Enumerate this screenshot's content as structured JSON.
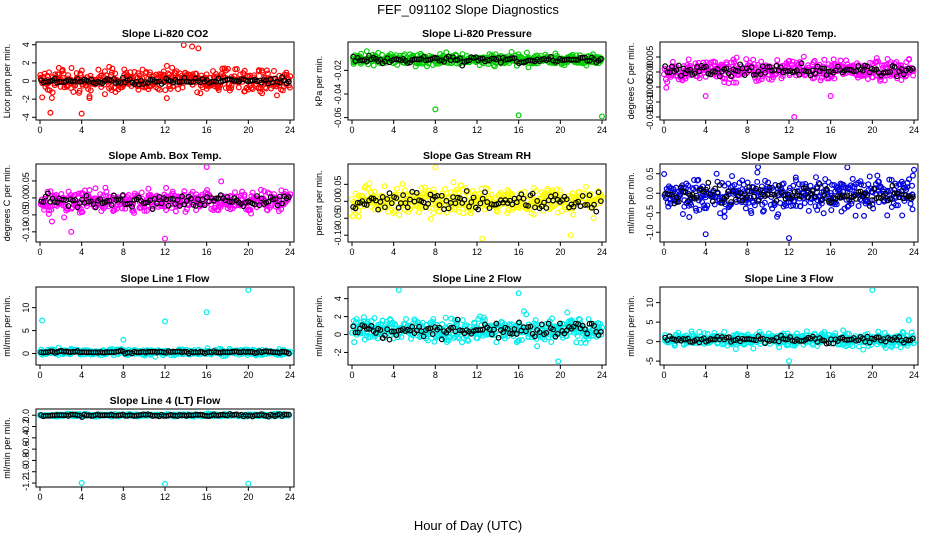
{
  "figure": {
    "title": "FEF_091102  Slope Diagnostics",
    "xlabel": "Hour of Day (UTC)"
  },
  "chart_data": [
    {
      "type": "scatter",
      "title": "Slope Li-820 CO2",
      "ylabel": "Licor ppm per min.",
      "color": "#ff0000",
      "xlim": [
        0,
        24
      ],
      "xticks": [
        0,
        4,
        8,
        12,
        16,
        20,
        24
      ],
      "ylim": [
        -4.3,
        4.3
      ],
      "yticks": [
        -4,
        -2,
        0,
        2,
        4
      ],
      "ytick_labels": [
        "-4",
        "-2",
        "0",
        "2",
        "4"
      ],
      "center": 0,
      "spread": 1.25,
      "black_spread": 0.35,
      "outliers": [
        [
          13.8,
          4.1
        ],
        [
          14.6,
          3.8
        ],
        [
          15.2,
          3.6
        ],
        [
          4.0,
          -3.6
        ],
        [
          1.0,
          -3.5
        ]
      ]
    },
    {
      "type": "scatter",
      "title": "Slope Li-820 Pressure",
      "ylabel": "kPa per min.",
      "color": "#00cc00",
      "xlim": [
        0,
        24
      ],
      "xticks": [
        0,
        4,
        8,
        12,
        16,
        20,
        24
      ],
      "ylim": [
        -0.062,
        0.004
      ],
      "yticks": [
        -0.06,
        -0.04,
        -0.02
      ],
      "ytick_labels": [
        "-0.06",
        "-0.04",
        "-0.02"
      ],
      "center": -0.011,
      "spread": 0.004,
      "black_spread": 0.003,
      "outliers": [
        [
          8.0,
          -0.053
        ],
        [
          16.0,
          -0.058
        ],
        [
          24.0,
          -0.059
        ]
      ]
    },
    {
      "type": "scatter",
      "title": "Slope Li-820 Temp.",
      "ylabel": "degrees C per min.",
      "color": "#ff00ff",
      "xlim": [
        0,
        24
      ],
      "xticks": [
        0,
        4,
        8,
        12,
        16,
        20,
        24
      ],
      "ylim": [
        -0.016,
        0.01
      ],
      "yticks": [
        -0.015,
        -0.01,
        -0.005,
        0,
        0.005
      ],
      "ytick_labels": [
        "-0.015",
        "-0.010",
        "-0.005",
        "0.000",
        "0.005"
      ],
      "center": 0.0005,
      "spread": 0.003,
      "black_spread": 0.002,
      "outliers": [
        [
          12.5,
          -0.015
        ],
        [
          4.0,
          -0.008
        ],
        [
          16.0,
          -0.008
        ]
      ]
    },
    {
      "type": "scatter",
      "title": "Slope Amb. Box Temp.",
      "ylabel": "degrees C per min.",
      "color": "#ff00ff",
      "xlim": [
        0,
        24
      ],
      "xticks": [
        0,
        4,
        8,
        12,
        16,
        20,
        24
      ],
      "ylim": [
        -0.13,
        0.1
      ],
      "yticks": [
        -0.1,
        -0.05,
        0,
        0.05
      ],
      "ytick_labels": [
        "-0.10",
        "-0.05",
        "0.00",
        "0.05"
      ],
      "center": -0.01,
      "spread": 0.03,
      "black_spread": 0.02,
      "outliers": [
        [
          12.0,
          -0.12
        ],
        [
          16.0,
          0.095
        ],
        [
          3.0,
          -0.1
        ]
      ]
    },
    {
      "type": "scatter",
      "title": "Slope Gas Stream RH",
      "ylabel": "percent per min.",
      "color": "#ffff00",
      "xlim": [
        0,
        24
      ],
      "xticks": [
        0,
        4,
        8,
        12,
        16,
        20,
        24
      ],
      "ylim": [
        -0.12,
        0.11
      ],
      "yticks": [
        -0.1,
        -0.05,
        0,
        0.05
      ],
      "ytick_labels": [
        "-0.10",
        "-0.05",
        "0.00",
        "0.05"
      ],
      "center": 0,
      "spread": 0.035,
      "black_spread": 0.025,
      "outliers": [
        [
          8.0,
          0.1
        ],
        [
          12.5,
          -0.11
        ],
        [
          21.0,
          -0.1
        ]
      ]
    },
    {
      "type": "scatter",
      "title": "Slope Sample Flow",
      "ylabel": "ml/min per min.",
      "color": "#0000dd",
      "xlim": [
        0,
        24
      ],
      "xticks": [
        0,
        4,
        8,
        12,
        16,
        20,
        24
      ],
      "ylim": [
        -1.25,
        0.75
      ],
      "yticks": [
        -1,
        -0.5,
        0,
        0.5
      ],
      "ytick_labels": [
        "-1.0",
        "-0.5",
        "0.0",
        "0.5"
      ],
      "center": -0.05,
      "spread": 0.35,
      "black_spread": 0.25,
      "outliers": [
        [
          12.0,
          -1.15
        ],
        [
          4.0,
          -1.05
        ],
        [
          24.0,
          0.6
        ]
      ]
    },
    {
      "type": "scatter",
      "title": "Slope Line 1 Flow",
      "ylabel": "ml/min per min.",
      "color": "#00eeee",
      "xlim": [
        0,
        24
      ],
      "xticks": [
        0,
        4,
        8,
        12,
        16,
        20,
        24
      ],
      "ylim": [
        -2.5,
        14.5
      ],
      "yticks": [
        0,
        5,
        10
      ],
      "ytick_labels": [
        "0",
        "5",
        "10"
      ],
      "center": 0.3,
      "spread": 0.6,
      "black_spread": 0.2,
      "outliers": [
        [
          20.0,
          14.0
        ],
        [
          0.2,
          7.2
        ],
        [
          12.0,
          7.0
        ],
        [
          16.0,
          9.0
        ],
        [
          8.0,
          3.0
        ]
      ]
    },
    {
      "type": "scatter",
      "title": "Slope Line 2 Flow",
      "ylabel": "ml/min per min.",
      "color": "#00eeee",
      "xlim": [
        0,
        24
      ],
      "xticks": [
        0,
        4,
        8,
        12,
        16,
        20,
        24
      ],
      "ylim": [
        -3.4,
        5.3
      ],
      "yticks": [
        -2,
        0,
        2,
        4
      ],
      "ytick_labels": [
        "-2",
        "0",
        "2",
        "4"
      ],
      "center": 0.5,
      "spread": 1.2,
      "black_spread": 0.8,
      "outliers": [
        [
          19.8,
          -3.0
        ],
        [
          4.5,
          5.0
        ],
        [
          16.0,
          4.6
        ]
      ]
    },
    {
      "type": "scatter",
      "title": "Slope Line 3 Flow",
      "ylabel": "ml/min per min.",
      "color": "#00eeee",
      "xlim": [
        0,
        24
      ],
      "xticks": [
        0,
        4,
        8,
        12,
        16,
        20,
        24
      ],
      "ylim": [
        -6,
        14
      ],
      "yticks": [
        -5,
        0,
        5,
        10
      ],
      "ytick_labels": [
        "-5",
        "0",
        "5",
        "10"
      ],
      "center": 0.5,
      "spread": 1.6,
      "black_spread": 0.8,
      "outliers": [
        [
          20.0,
          13.5
        ],
        [
          23.5,
          5.5
        ],
        [
          12.0,
          -5.0
        ]
      ]
    },
    {
      "type": "scatter",
      "title": "Slope Line 4 (LT) Flow",
      "ylabel": "ml/min per min.",
      "color": "#00eeee",
      "xlim": [
        0,
        24
      ],
      "xticks": [
        0,
        4,
        8,
        12,
        16,
        20,
        24
      ],
      "ylim": [
        -1.27,
        0.11
      ],
      "yticks": [
        -1.2,
        -1.0,
        -0.8,
        -0.6,
        -0.4,
        -0.2,
        0.0
      ],
      "ytick_labels": [
        "-1.2",
        "-1.0",
        "-0.8",
        "-0.6",
        "-0.4",
        "-0.2",
        "0.0"
      ],
      "center": 0.0,
      "spread": 0.02,
      "black_spread": 0.02,
      "outliers": [
        [
          4.0,
          -1.2
        ],
        [
          12.0,
          -1.22
        ],
        [
          20.0,
          -1.21
        ]
      ]
    }
  ]
}
